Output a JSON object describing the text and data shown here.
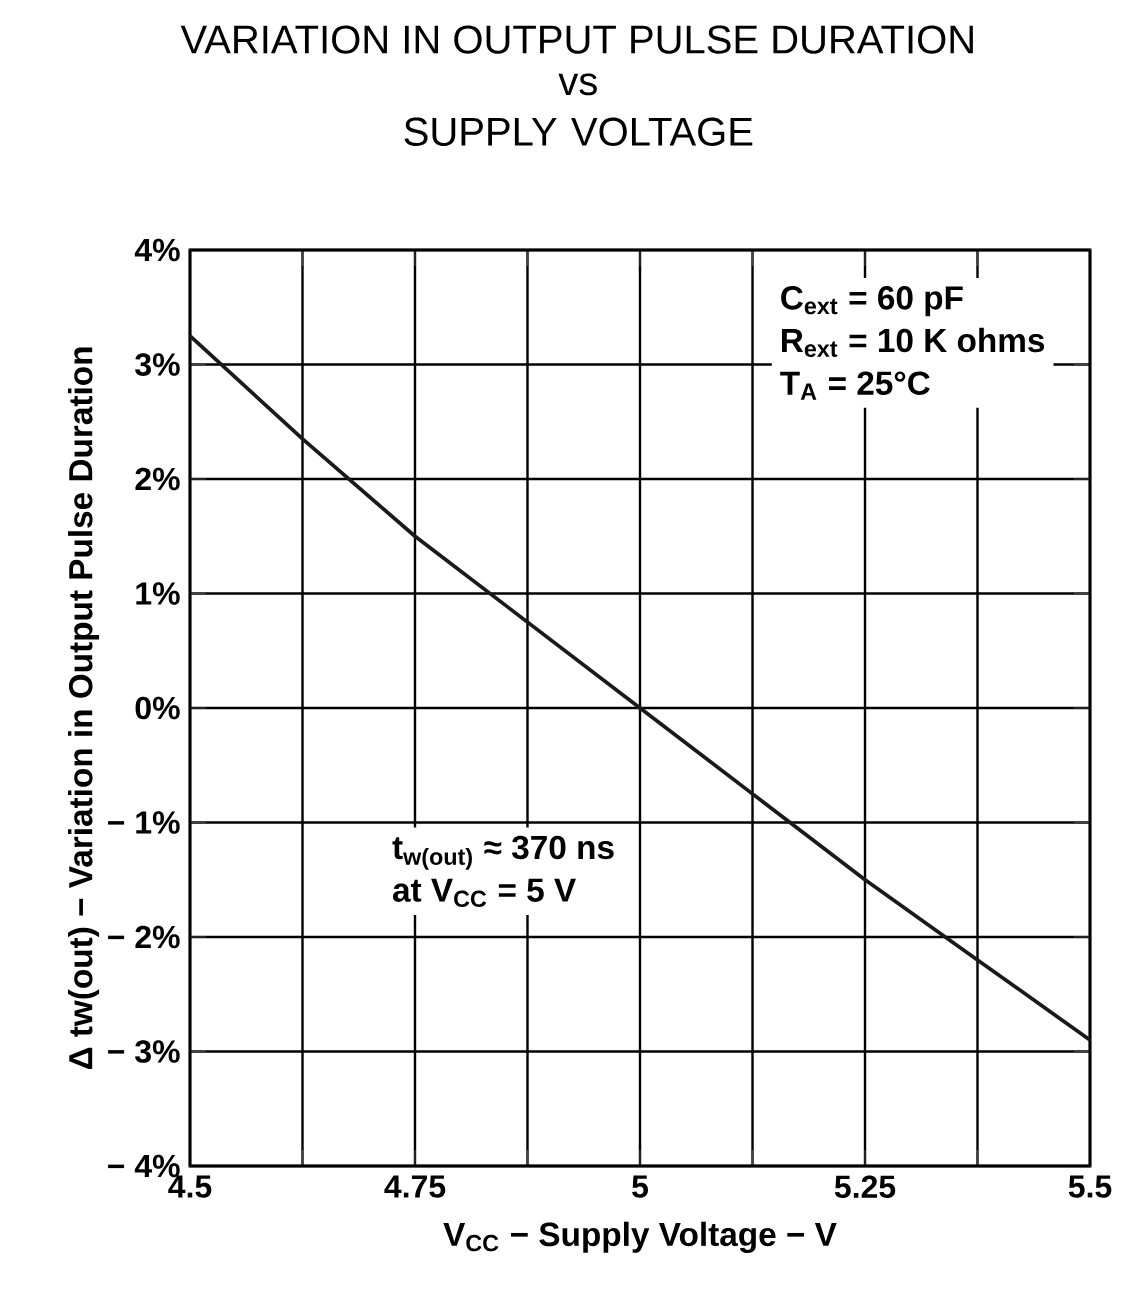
{
  "chart_data": {
    "type": "line",
    "title": "VARIATION IN OUTPUT PULSE DURATION",
    "subtitle": "vs SUPPLY VOLTAGE",
    "xlabel": "V$_{CC}$ − Supply Voltage − V",
    "ylabel": "Δ tw(out) − Variation in Output Pulse Duration",
    "x": [
      4.5,
      4.625,
      4.75,
      4.875,
      5.0,
      5.125,
      5.25,
      5.375,
      5.5
    ],
    "series": [
      {
        "color": "#1a1a1a",
        "values": [
          3.25,
          2.35,
          1.5,
          0.75,
          0,
          -0.75,
          -1.5,
          -2.2,
          -2.9
        ]
      }
    ],
    "xlim": [
      4.5,
      5.5
    ],
    "xticks": [
      4.5,
      {
        "value": 4.625,
        "label": null
      },
      4.75,
      {
        "value": 4.875,
        "label": null
      },
      5,
      {
        "value": 5.125,
        "label": null
      },
      5.25,
      {
        "value": 5.375,
        "label": null
      },
      5.5
    ],
    "ylim": [
      -4,
      4
    ],
    "yticks": [
      {
        "value": -4,
        "label": "− 4%"
      },
      {
        "value": -3,
        "label": "− 3%"
      },
      {
        "value": -2,
        "label": "− 2%"
      },
      {
        "value": -1,
        "label": "− 1%"
      },
      {
        "value": 0,
        "label": "0%"
      },
      {
        "value": 1,
        "label": "1%"
      },
      {
        "value": 2,
        "label": "2%"
      },
      {
        "value": 3,
        "label": "3%"
      },
      {
        "value": 4,
        "label": "4%"
      }
    ],
    "grid": true,
    "marker": "none",
    "line_style": "solid",
    "annotations": [
      "C$_{ext}$ = 60 pF",
      "R$_{ext}$ = 10 K ohms",
      "T$_{A}$ = 25°C",
      "t$_{w(out)}$ ≈ 370 ns",
      "at V$_{CC}$ = 5 V"
    ]
  }
}
